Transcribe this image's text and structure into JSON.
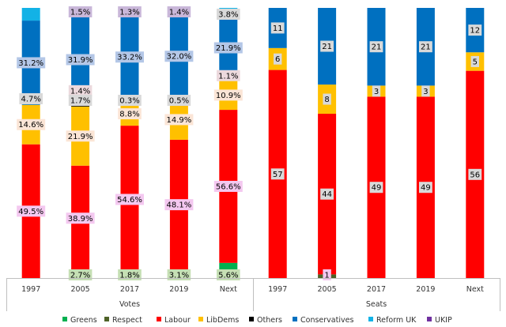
{
  "chart_data": {
    "type": "bar",
    "stacked": true,
    "normalized": true,
    "legend_position": "bottom",
    "grid": false,
    "colors": {
      "Greens": "#00b050",
      "Respect": "#4f6228",
      "Labour": "#ff0000",
      "LibDems": "#ffc000",
      "Others": "#000000",
      "Conservatives": "#0070c0",
      "Reform UK": "#12b2e6",
      "UKIP": "#7030a0"
    },
    "legend": [
      "Greens",
      "Respect",
      "Labour",
      "LibDems",
      "Others",
      "Conservatives",
      "Reform UK",
      "UKIP"
    ],
    "groups": [
      {
        "label": "Votes",
        "unit": "%",
        "categories": [
          "1997",
          "2005",
          "2017",
          "2019",
          "Next"
        ],
        "series": [
          {
            "name": "Greens",
            "values": [
              0,
              0,
              0,
              0,
              5.6
            ]
          },
          {
            "name": "Respect",
            "values": [
              0,
              2.7,
              1.8,
              3.1,
              0
            ]
          },
          {
            "name": "Labour",
            "values": [
              49.5,
              38.9,
              54.6,
              48.1,
              56.6
            ]
          },
          {
            "name": "LibDems",
            "values": [
              14.6,
              21.9,
              8.8,
              14.9,
              10.9
            ]
          },
          {
            "name": "Others",
            "values": [
              0,
              1.4,
              0,
              0,
              1.1
            ]
          },
          {
            "name": "Conservatives",
            "values": [
              31.2,
              31.9,
              33.2,
              32.0,
              21.9
            ]
          },
          {
            "name": "Reform UK",
            "values": [
              4.7,
              1.7,
              0.3,
              0.5,
              3.8
            ]
          },
          {
            "name": "UKIP",
            "values": [
              0,
              1.5,
              1.3,
              1.4,
              0
            ]
          }
        ],
        "data_labels": [
          [
            "",
            "",
            "49.5%",
            "14.6%",
            "",
            "31.2%",
            "4.7%",
            ""
          ],
          [
            "",
            "2.7%",
            "38.9%",
            "21.9%",
            "1.4%",
            "31.9%",
            "1.7%",
            "1.5%"
          ],
          [
            "",
            "1.8%",
            "54.6%",
            "8.8%",
            "",
            "33.2%",
            "0.3%",
            "1.3%"
          ],
          [
            "",
            "3.1%",
            "48.1%",
            "14.9%",
            "",
            "32.0%",
            "0.5%",
            "1.4%"
          ],
          [
            "5.6%",
            "",
            "56.6%",
            "10.9%",
            "1.1%",
            "21.9%",
            "3.8%",
            ""
          ]
        ]
      },
      {
        "label": "Seats",
        "unit": "",
        "categories": [
          "1997",
          "2005",
          "2017",
          "2019",
          "Next"
        ],
        "series": [
          {
            "name": "Greens",
            "values": [
              0,
              0,
              0,
              0,
              0
            ]
          },
          {
            "name": "Respect",
            "values": [
              0,
              1,
              0,
              0,
              0
            ]
          },
          {
            "name": "Labour",
            "values": [
              57,
              44,
              49,
              49,
              56
            ]
          },
          {
            "name": "LibDems",
            "values": [
              6,
              8,
              3,
              3,
              5
            ]
          },
          {
            "name": "Others",
            "values": [
              0,
              0,
              0,
              0,
              0
            ]
          },
          {
            "name": "Conservatives",
            "values": [
              11,
              21,
              21,
              21,
              12
            ]
          },
          {
            "name": "Reform UK",
            "values": [
              0,
              0,
              0,
              0,
              0
            ]
          },
          {
            "name": "UKIP",
            "values": [
              0,
              0,
              0,
              0,
              0
            ]
          }
        ],
        "data_labels": [
          [
            "",
            "",
            "57",
            "6",
            "",
            "11",
            "",
            ""
          ],
          [
            "",
            "1",
            "44",
            "8",
            "",
            "21",
            "",
            ""
          ],
          [
            "",
            "",
            "49",
            "3",
            "",
            "21",
            "",
            ""
          ],
          [
            "",
            "",
            "49",
            "3",
            "",
            "21",
            "",
            ""
          ],
          [
            "",
            "",
            "56",
            "5",
            "",
            "12",
            "",
            ""
          ]
        ]
      }
    ]
  }
}
